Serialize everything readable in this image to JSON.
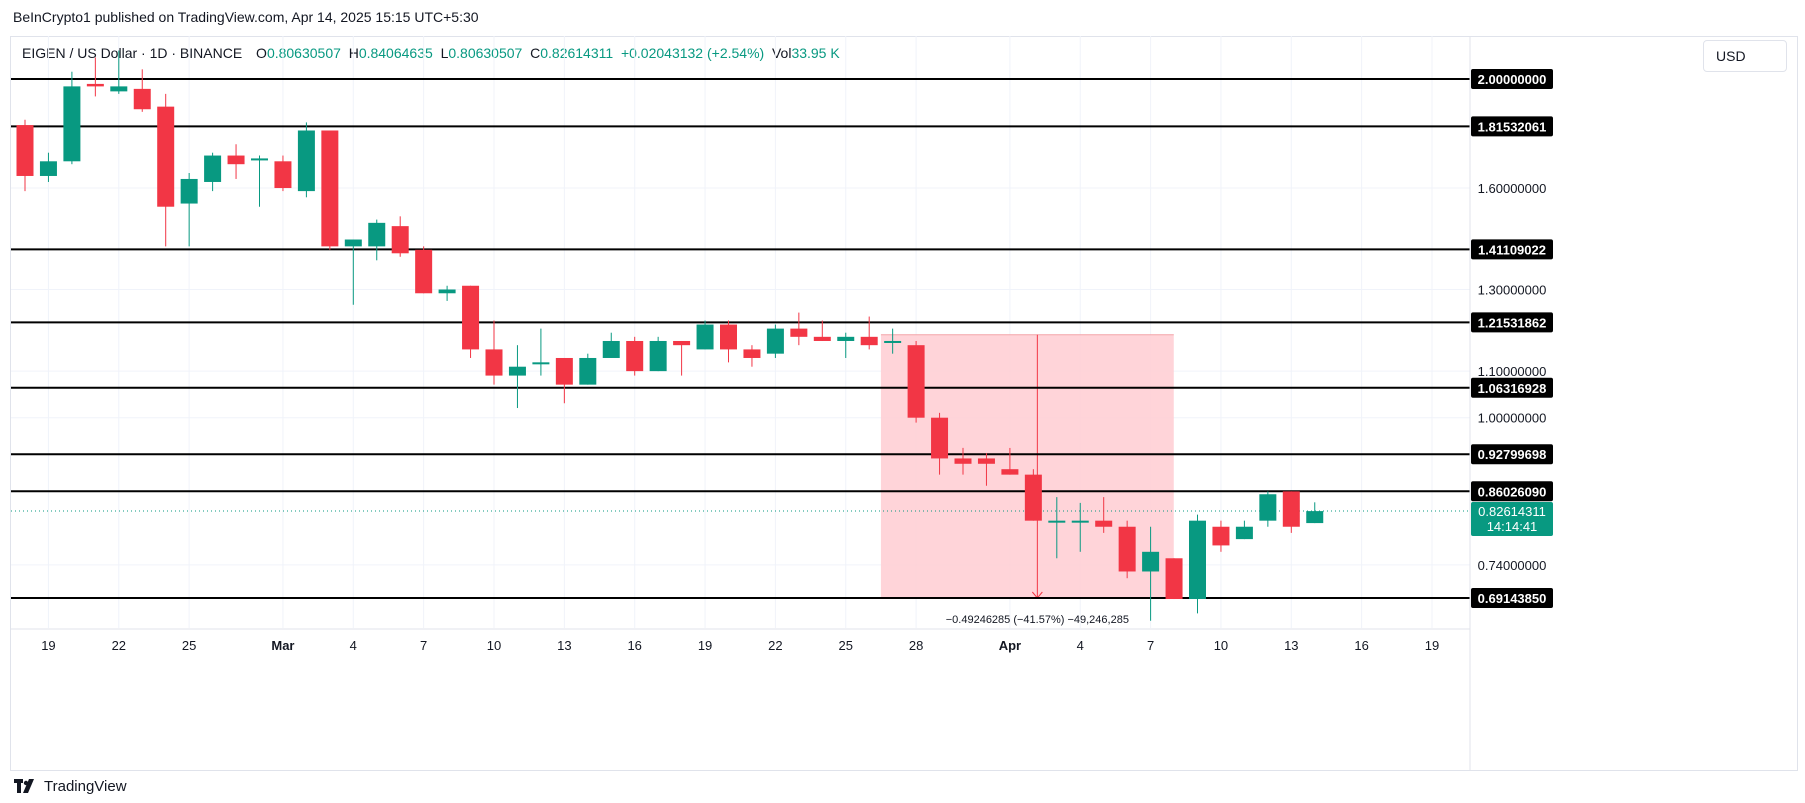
{
  "header": {
    "publisher_line": "BeInCrypto1 published on TradingView.com, Apr 14, 2025 15:15 UTC+5:30"
  },
  "legend": {
    "symbol": "EIGEN / US Dollar · 1D · BINANCE",
    "o_label": "O",
    "o_value": "0.80630507",
    "h_label": "H",
    "h_value": "0.84064635",
    "l_label": "L",
    "l_value": "0.80630507",
    "c_label": "C",
    "c_value": "0.82614311",
    "change": "+0.02043132 (+2.54%)",
    "vol_label": "Vol",
    "vol_value": "33.95 K"
  },
  "currency_button": "USD",
  "footer": {
    "brand": "TradingView",
    "logo_icon": "tradingview-logo-icon"
  },
  "colors": {
    "up": "#089981",
    "down": "#f23645",
    "range": "#ffcdd2",
    "line": "#000000"
  },
  "chart_data": {
    "type": "candlestick",
    "title": "EIGEN / US Dollar · 1D · BINANCE",
    "y_scale": "log",
    "ylim": [
      0.66,
      2.1
    ],
    "first_day": "2025-02-18",
    "x_days": 63,
    "x_ticks": [
      {
        "day": 1,
        "label": "19"
      },
      {
        "day": 4,
        "label": "22"
      },
      {
        "day": 7,
        "label": "25"
      },
      {
        "day": 11,
        "label": "Mar"
      },
      {
        "day": 14,
        "label": "4"
      },
      {
        "day": 17,
        "label": "7"
      },
      {
        "day": 20,
        "label": "10"
      },
      {
        "day": 23,
        "label": "13"
      },
      {
        "day": 26,
        "label": "16"
      },
      {
        "day": 29,
        "label": "19"
      },
      {
        "day": 32,
        "label": "22"
      },
      {
        "day": 35,
        "label": "25"
      },
      {
        "day": 38,
        "label": "28"
      },
      {
        "day": 42,
        "label": "Apr"
      },
      {
        "day": 45,
        "label": "4"
      },
      {
        "day": 48,
        "label": "7"
      },
      {
        "day": 51,
        "label": "10"
      },
      {
        "day": 54,
        "label": "13"
      },
      {
        "day": 57,
        "label": "16"
      },
      {
        "day": 60,
        "label": "19"
      }
    ],
    "y_ticks": [
      "1.60000000",
      "1.30000000",
      "1.10000000",
      "1.00000000",
      "0.74000000"
    ],
    "y_tick_values": [
      1.6,
      1.3,
      1.1,
      1.0,
      0.74
    ],
    "horizontal_levels": [
      {
        "value": 2.0,
        "label": "2.00000000"
      },
      {
        "value": 1.81532061,
        "label": "1.81532061"
      },
      {
        "value": 1.41109022,
        "label": "1.41109022"
      },
      {
        "value": 1.21531862,
        "label": "1.21531862"
      },
      {
        "value": 1.06316928,
        "label": "1.06316928"
      },
      {
        "value": 0.92799698,
        "label": "0.92799698"
      },
      {
        "value": 0.8602609,
        "label": "0.86026090"
      },
      {
        "value": 0.6914385,
        "label": "0.69143850"
      }
    ],
    "last_price": {
      "value": 0.82614311,
      "label": "0.82614311",
      "countdown": "14:14:41"
    },
    "measure_range": {
      "start_day": 37,
      "end_day": 49,
      "top": 1.185,
      "bottom": 0.6914385,
      "arrow_day": 43,
      "label": "−0.49246285 (−41.57%) −49,246,285"
    },
    "candles": [
      {
        "o": 1.82,
        "h": 1.84,
        "l": 1.59,
        "c": 1.64
      },
      {
        "o": 1.64,
        "h": 1.72,
        "l": 1.62,
        "c": 1.69
      },
      {
        "o": 1.69,
        "h": 2.03,
        "l": 1.68,
        "c": 1.97
      },
      {
        "o": 1.98,
        "h": 2.09,
        "l": 1.93,
        "c": 1.97
      },
      {
        "o": 1.95,
        "h": 2.12,
        "l": 1.94,
        "c": 1.97
      },
      {
        "o": 1.96,
        "h": 2.04,
        "l": 1.87,
        "c": 1.88
      },
      {
        "o": 1.89,
        "h": 1.94,
        "l": 1.42,
        "c": 1.54
      },
      {
        "o": 1.55,
        "h": 1.65,
        "l": 1.42,
        "c": 1.63
      },
      {
        "o": 1.62,
        "h": 1.72,
        "l": 1.59,
        "c": 1.71
      },
      {
        "o": 1.71,
        "h": 1.75,
        "l": 1.63,
        "c": 1.68
      },
      {
        "o": 1.7,
        "h": 1.71,
        "l": 1.54,
        "c": 1.7
      },
      {
        "o": 1.69,
        "h": 1.71,
        "l": 1.59,
        "c": 1.6
      },
      {
        "o": 1.59,
        "h": 1.83,
        "l": 1.57,
        "c": 1.8
      },
      {
        "o": 1.8,
        "h": 1.8,
        "l": 1.41,
        "c": 1.42
      },
      {
        "o": 1.42,
        "h": 1.44,
        "l": 1.26,
        "c": 1.44
      },
      {
        "o": 1.42,
        "h": 1.5,
        "l": 1.38,
        "c": 1.49
      },
      {
        "o": 1.48,
        "h": 1.51,
        "l": 1.39,
        "c": 1.4
      },
      {
        "o": 1.41,
        "h": 1.42,
        "l": 1.29,
        "c": 1.29
      },
      {
        "o": 1.29,
        "h": 1.31,
        "l": 1.27,
        "c": 1.3
      },
      {
        "o": 1.31,
        "h": 1.31,
        "l": 1.13,
        "c": 1.15
      },
      {
        "o": 1.15,
        "h": 1.22,
        "l": 1.07,
        "c": 1.09
      },
      {
        "o": 1.09,
        "h": 1.16,
        "l": 1.02,
        "c": 1.11
      },
      {
        "o": 1.12,
        "h": 1.2,
        "l": 1.09,
        "c": 1.12
      },
      {
        "o": 1.13,
        "h": 1.13,
        "l": 1.03,
        "c": 1.07
      },
      {
        "o": 1.07,
        "h": 1.14,
        "l": 1.07,
        "c": 1.13
      },
      {
        "o": 1.13,
        "h": 1.19,
        "l": 1.13,
        "c": 1.17
      },
      {
        "o": 1.17,
        "h": 1.18,
        "l": 1.09,
        "c": 1.1
      },
      {
        "o": 1.1,
        "h": 1.18,
        "l": 1.1,
        "c": 1.17
      },
      {
        "o": 1.17,
        "h": 1.17,
        "l": 1.09,
        "c": 1.16
      },
      {
        "o": 1.15,
        "h": 1.22,
        "l": 1.15,
        "c": 1.21
      },
      {
        "o": 1.21,
        "h": 1.22,
        "l": 1.12,
        "c": 1.15
      },
      {
        "o": 1.15,
        "h": 1.16,
        "l": 1.11,
        "c": 1.13
      },
      {
        "o": 1.14,
        "h": 1.21,
        "l": 1.13,
        "c": 1.2
      },
      {
        "o": 1.2,
        "h": 1.24,
        "l": 1.16,
        "c": 1.18
      },
      {
        "o": 1.18,
        "h": 1.22,
        "l": 1.17,
        "c": 1.17
      },
      {
        "o": 1.17,
        "h": 1.19,
        "l": 1.13,
        "c": 1.18
      },
      {
        "o": 1.18,
        "h": 1.23,
        "l": 1.15,
        "c": 1.16
      },
      {
        "o": 1.17,
        "h": 1.2,
        "l": 1.14,
        "c": 1.17
      },
      {
        "o": 1.16,
        "h": 1.17,
        "l": 0.99,
        "c": 1.0
      },
      {
        "o": 1.0,
        "h": 1.01,
        "l": 0.89,
        "c": 0.92
      },
      {
        "o": 0.92,
        "h": 0.94,
        "l": 0.89,
        "c": 0.91
      },
      {
        "o": 0.92,
        "h": 0.93,
        "l": 0.87,
        "c": 0.91
      },
      {
        "o": 0.9,
        "h": 0.94,
        "l": 0.89,
        "c": 0.89
      },
      {
        "o": 0.89,
        "h": 0.9,
        "l": 0.81,
        "c": 0.81
      },
      {
        "o": 0.81,
        "h": 0.85,
        "l": 0.75,
        "c": 0.81
      },
      {
        "o": 0.81,
        "h": 0.84,
        "l": 0.76,
        "c": 0.81
      },
      {
        "o": 0.81,
        "h": 0.85,
        "l": 0.79,
        "c": 0.8
      },
      {
        "o": 0.8,
        "h": 0.81,
        "l": 0.72,
        "c": 0.73
      },
      {
        "o": 0.73,
        "h": 0.8,
        "l": 0.66,
        "c": 0.76
      },
      {
        "o": 0.75,
        "h": 0.75,
        "l": 0.69,
        "c": 0.69
      },
      {
        "o": 0.69,
        "h": 0.82,
        "l": 0.67,
        "c": 0.81
      },
      {
        "o": 0.8,
        "h": 0.81,
        "l": 0.76,
        "c": 0.77
      },
      {
        "o": 0.78,
        "h": 0.81,
        "l": 0.78,
        "c": 0.8
      },
      {
        "o": 0.81,
        "h": 0.86,
        "l": 0.8,
        "c": 0.855
      },
      {
        "o": 0.86,
        "h": 0.86,
        "l": 0.79,
        "c": 0.8
      },
      {
        "o": 0.806,
        "h": 0.841,
        "l": 0.806,
        "c": 0.826
      }
    ]
  }
}
